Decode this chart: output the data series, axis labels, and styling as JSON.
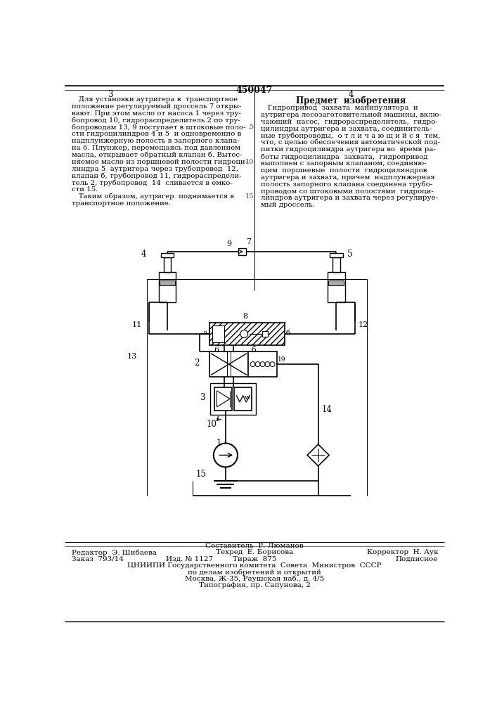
{
  "title": "450047",
  "bg_color": "#ffffff",
  "text_color": "#1a1a1a",
  "left_col_lines": [
    "   Для установки аутригера в  транспортное",
    "положение регулируемый дроссель 7 откры-",
    "вают. При этом масло от насоса 1 через тру-",
    "бопровод 10, гидрораспределитель 2 по тру-",
    "бопроводам 13, 9 поступает в штоковые поло-",
    "сти гидроцилиндров 4 и 5  и одновременно в",
    "надплунжерную полость в запорного клапа-",
    "на 6. Плунжер, перемещаясь под давлением",
    "масла, открывает обратный клапан б. Вытес-",
    "няемое масло из поршневой полости гидроци-",
    "линдра 5  аутригера через трубопровод  12,",
    "клапан б, трубопровод 11, гидрораспредели-",
    "тель 2, трубопровод  14  сливается в емко-",
    "сти 15.",
    "   Таким образом, аутригер  поднимается в",
    "транспортное положение."
  ],
  "right_col_heading": "Предмет  изобретения",
  "right_col_lines": [
    "   Гидропривод  захвата  манипулятора  и",
    "аутригера лесозаготовительной машины, вклю-",
    "чающий  насос,  гидрораспределитель,  гидро-",
    "цилиндры аутригера и захвата, соединитель-",
    "ные трубопроводы,  о т л и ч а ю щ и й с я  тем,",
    "что, с целью обеспечения автоматической под-",
    "питки гидроцилиндра аутригера во  время ра-",
    "боты гидроцилиндра  захвата,  гидропривод",
    "выполнен с запорным клапаном, соединяю-",
    "щим  поршневые  полости  гидроцилиндров",
    "аутригера и захвата, причем  надплунжерная",
    "полость запорного клапана соединена трубо-",
    "проводом со штоковыми полостями  гидроци-",
    "линдров аутригера и захвата через регулируе-",
    "мый дроссель."
  ],
  "footer_author": "Составитель  Р. Люманов",
  "footer_editor": "Редактор  Э. Шибаева",
  "footer_techred": "Техред  Е. Борисова",
  "footer_corrector": "Корректор  Н. Аук",
  "footer_order": "Заказ  793/14",
  "footer_izd": "Изд. № 1127",
  "footer_tirazh": "Тираж  875",
  "footer_podp": "Подписное",
  "footer_org": "ЦНИИПИ Государственного комитета  Совета  Министров  СССР",
  "footer_dept": "по делам изобретений и открытий",
  "footer_addr": "Москва, Ж-35, Раушская наб., д. 4/5",
  "footer_print": "Типография, пр. Сапунова, 2"
}
